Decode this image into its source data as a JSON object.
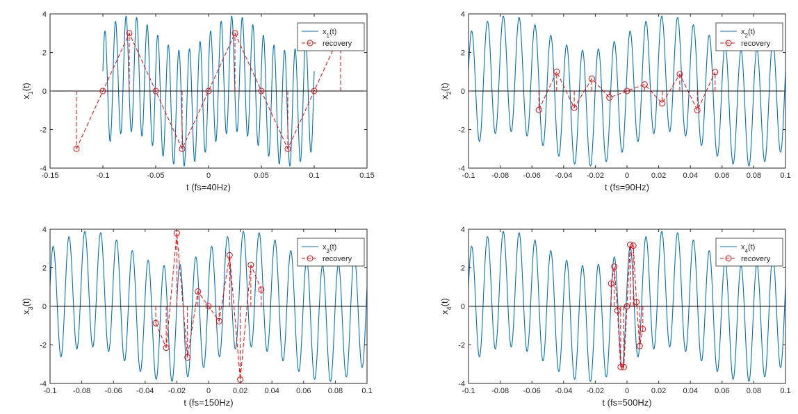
{
  "figure": {
    "signal_color": "#0072bd",
    "recovery_color": "#ff0000",
    "axis_color": "#262626"
  },
  "chart_data": [
    {
      "type": "line",
      "xlabel": "t (fs=40Hz)",
      "ylabel_base": "x",
      "ylabel_sub": "1",
      "ylabel_suffix": "(t)",
      "xlim": [
        -0.15,
        0.15
      ],
      "ylim": [
        -4,
        4
      ],
      "xticks": [
        -0.15,
        -0.1,
        -0.05,
        0,
        0.05,
        0.1,
        0.15
      ],
      "xtick_labels": [
        "-0.15",
        "-0.1",
        "-0.05",
        "0",
        "0.05",
        "0.1",
        "0.15"
      ],
      "yticks": [
        -4,
        -2,
        0,
        2,
        4
      ],
      "ytick_labels": [
        "-4",
        "-2",
        "0",
        "2",
        "4"
      ],
      "signal": {
        "t_start": -0.1,
        "t_end": 0.1
      },
      "legend": {
        "position": "top-right",
        "entries": [
          {
            "base": "x",
            "sub": "1",
            "suffix": "(t)"
          },
          {
            "base": "recovery",
            "sub": "",
            "suffix": ""
          }
        ]
      },
      "series": [
        {
          "name": "recovery",
          "x": [
            -0.125,
            -0.1,
            -0.075,
            -0.05,
            -0.025,
            0,
            0.025,
            0.05,
            0.075,
            0.1,
            0.125
          ],
          "y": [
            -3,
            0,
            3,
            0,
            -3,
            0,
            3,
            0,
            -3,
            0,
            3
          ],
          "marked": [
            true,
            true,
            true,
            true,
            true,
            true,
            true,
            true,
            true,
            true,
            false
          ]
        }
      ]
    },
    {
      "type": "line",
      "xlabel": "t (fs=90Hz)",
      "ylabel_base": "x",
      "ylabel_sub": "2",
      "ylabel_suffix": "(t)",
      "xlim": [
        -0.1,
        0.1
      ],
      "ylim": [
        -4,
        4
      ],
      "xticks": [
        -0.1,
        -0.08,
        -0.06,
        -0.04,
        -0.02,
        0,
        0.02,
        0.04,
        0.06,
        0.08,
        0.1
      ],
      "xtick_labels": [
        "-0.1",
        "-0.08",
        "-0.06",
        "-0.04",
        "-0.02",
        "0",
        "0.02",
        "0.04",
        "0.06",
        "0.08",
        "0.1"
      ],
      "yticks": [
        -4,
        -2,
        0,
        2,
        4
      ],
      "ytick_labels": [
        "-4",
        "-2",
        "0",
        "2",
        "4"
      ],
      "signal": {
        "t_start": -0.1,
        "t_end": 0.1
      },
      "legend": {
        "position": "top-right",
        "entries": [
          {
            "base": "x",
            "sub": "2",
            "suffix": "(t)"
          },
          {
            "base": "recovery",
            "sub": "",
            "suffix": ""
          }
        ]
      },
      "series": [
        {
          "name": "recovery",
          "x": [
            -0.0556,
            -0.0444,
            -0.0333,
            -0.0222,
            -0.0111,
            0,
            0.0111,
            0.0222,
            0.0333,
            0.0444,
            0.0556
          ],
          "y": [
            -0.98,
            1.0,
            -0.87,
            0.64,
            -0.34,
            0,
            0.34,
            -0.64,
            0.87,
            -1.0,
            0.98
          ],
          "marked": [
            true,
            true,
            true,
            true,
            true,
            true,
            true,
            true,
            true,
            true,
            true
          ]
        }
      ]
    },
    {
      "type": "line",
      "xlabel": "t (fs=150Hz)",
      "ylabel_base": "x",
      "ylabel_sub": "3",
      "ylabel_suffix": "(t)",
      "xlim": [
        -0.1,
        0.1
      ],
      "ylim": [
        -4,
        4
      ],
      "xticks": [
        -0.1,
        -0.08,
        -0.06,
        -0.04,
        -0.02,
        0,
        0.02,
        0.04,
        0.06,
        0.08,
        0.1
      ],
      "xtick_labels": [
        "-0.1",
        "-0.08",
        "-0.06",
        "-0.04",
        "-0.02",
        "0",
        "0.02",
        "0.04",
        "0.06",
        "0.08",
        "0.1"
      ],
      "yticks": [
        -4,
        -2,
        0,
        2,
        4
      ],
      "ytick_labels": [
        "-4",
        "-2",
        "0",
        "2",
        "4"
      ],
      "signal": {
        "t_start": -0.1,
        "t_end": 0.1
      },
      "legend": {
        "position": "top-right",
        "entries": [
          {
            "base": "x",
            "sub": "3",
            "suffix": "(t)"
          },
          {
            "base": "recovery",
            "sub": "",
            "suffix": ""
          }
        ]
      },
      "series": [
        {
          "name": "recovery",
          "x": [
            -0.0333,
            -0.0267,
            -0.02,
            -0.0133,
            -0.0067,
            0,
            0.0067,
            0.0133,
            0.02,
            0.0267,
            0.0333
          ],
          "y": [
            -0.87,
            -2.15,
            3.8,
            -2.65,
            0.77,
            0,
            -0.77,
            2.65,
            -3.8,
            2.15,
            0.87
          ],
          "marked": [
            true,
            true,
            true,
            true,
            true,
            true,
            true,
            true,
            true,
            true,
            true
          ]
        }
      ]
    },
    {
      "type": "line",
      "xlabel": "t (fs=500Hz)",
      "ylabel_base": "x",
      "ylabel_sub": "4",
      "ylabel_suffix": "(t)",
      "xlim": [
        -0.1,
        0.1
      ],
      "ylim": [
        -4,
        4
      ],
      "xticks": [
        -0.1,
        -0.08,
        -0.06,
        -0.04,
        -0.02,
        0,
        0.02,
        0.04,
        0.06,
        0.08,
        0.1
      ],
      "xtick_labels": [
        "-0.1",
        "-0.08",
        "-0.06",
        "-0.04",
        "-0.02",
        "0",
        "0.02",
        "0.04",
        "0.06",
        "0.08",
        "0.1"
      ],
      "yticks": [
        -4,
        -2,
        0,
        2,
        4
      ],
      "ytick_labels": [
        "-4",
        "-2",
        "0",
        "2",
        "4"
      ],
      "signal": {
        "t_start": -0.1,
        "t_end": 0.1
      },
      "legend": {
        "position": "top-right",
        "entries": [
          {
            "base": "x",
            "sub": "4",
            "suffix": "(t)"
          },
          {
            "base": "recovery",
            "sub": "",
            "suffix": ""
          }
        ]
      },
      "series": [
        {
          "name": "recovery",
          "x": [
            -0.01,
            -0.008,
            -0.006,
            -0.004,
            -0.002,
            0,
            0.002,
            0.004,
            0.006,
            0.008,
            0.01
          ],
          "y": [
            1.18,
            2.06,
            -0.22,
            -3.15,
            -3.15,
            0,
            3.2,
            3.15,
            0.22,
            -2.06,
            -1.18
          ],
          "marked": [
            true,
            true,
            true,
            true,
            true,
            true,
            true,
            true,
            true,
            true,
            true
          ]
        }
      ]
    }
  ]
}
